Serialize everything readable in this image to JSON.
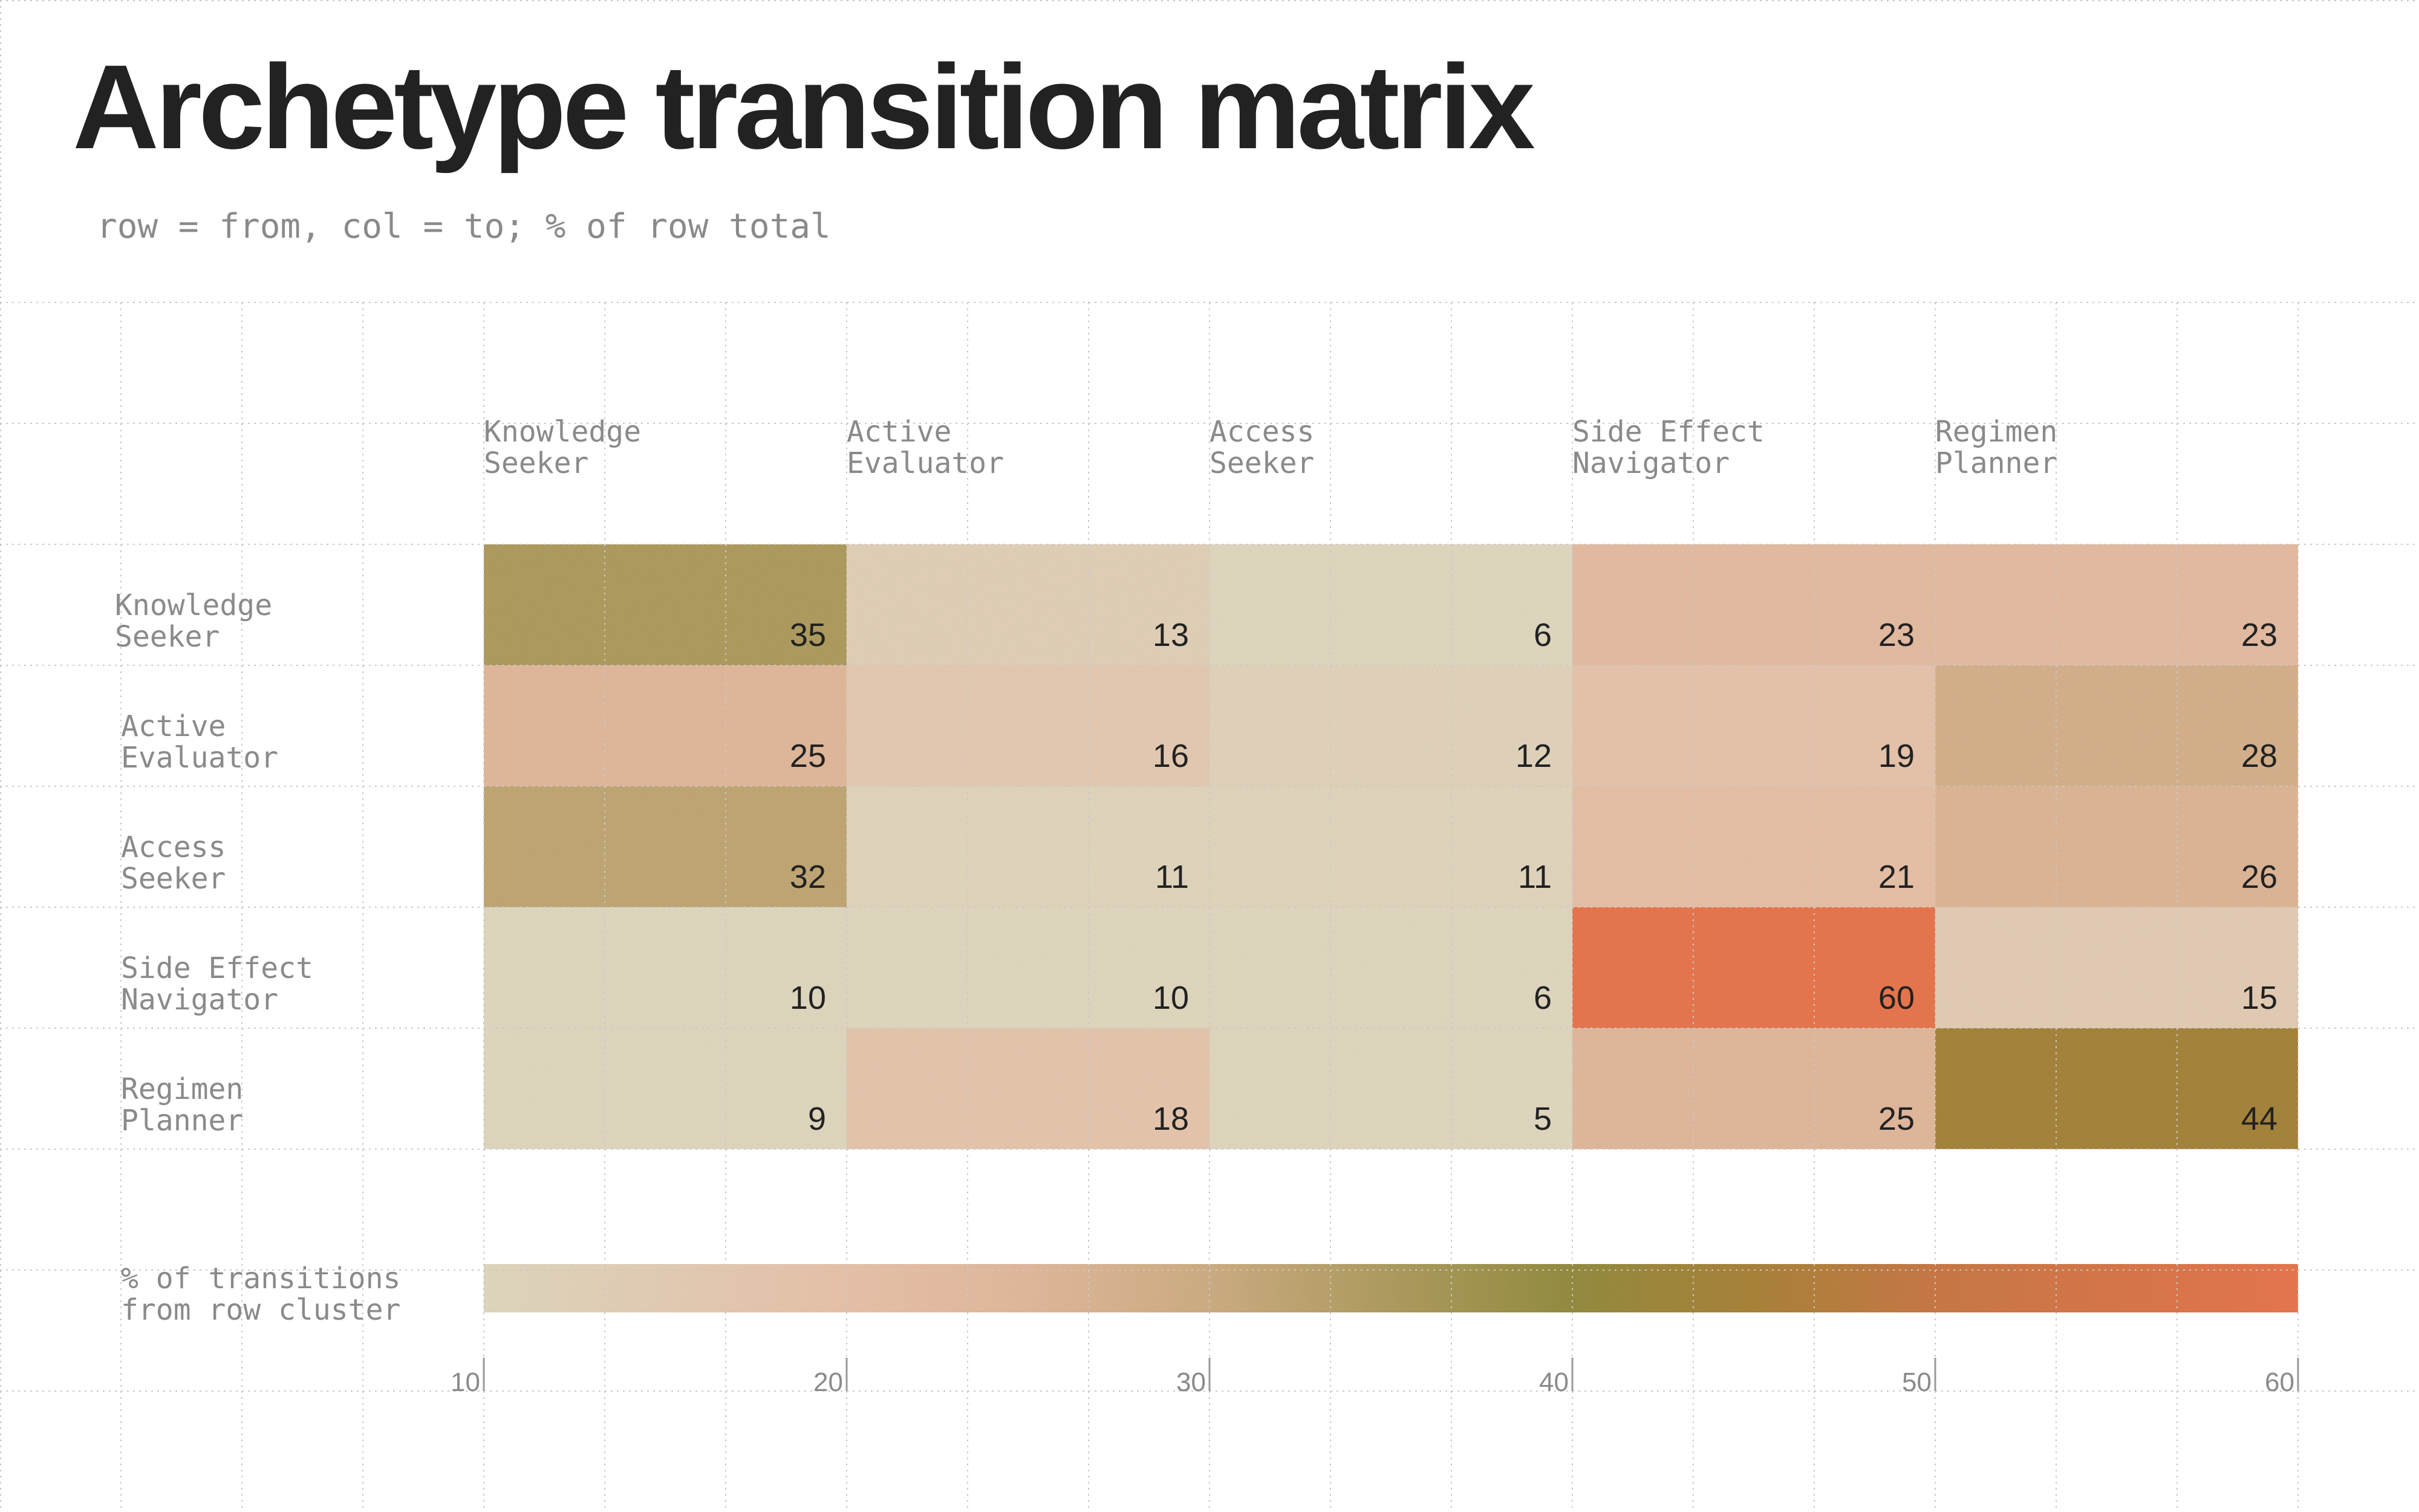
{
  "title": "Archetype transition matrix",
  "subtitle": "row = from, col = to; % of row total",
  "chart_data": {
    "type": "heatmap",
    "title": "Archetype transition matrix",
    "subtitle": "row = from, col = to; % of row total",
    "row_labels": [
      [
        "Knowledge",
        "Seeker"
      ],
      [
        "Active",
        "Evaluator"
      ],
      [
        "Access",
        "Seeker"
      ],
      [
        "Side Effect",
        "Navigator"
      ],
      [
        "Regimen",
        "Planner"
      ]
    ],
    "column_labels": [
      [
        "Knowledge",
        "Seeker"
      ],
      [
        "Active",
        "Evaluator"
      ],
      [
        "Access",
        "Seeker"
      ],
      [
        "Side Effect",
        "Navigator"
      ],
      [
        "Regimen",
        "Planner"
      ]
    ],
    "values": [
      [
        35,
        13,
        6,
        23,
        23
      ],
      [
        25,
        16,
        12,
        19,
        28
      ],
      [
        32,
        11,
        11,
        21,
        26
      ],
      [
        10,
        10,
        6,
        60,
        15
      ],
      [
        9,
        18,
        5,
        25,
        44
      ]
    ],
    "colorbar": {
      "label": [
        "% of transitions",
        "from row cluster"
      ],
      "range": [
        10,
        60
      ],
      "ticks": [
        10,
        20,
        30,
        40,
        50,
        60
      ],
      "stops": [
        {
          "value": 10,
          "color": "#e8dfc6"
        },
        {
          "value": 20,
          "color": "#f0c9b0"
        },
        {
          "value": 25,
          "color": "#e9bfa2"
        },
        {
          "value": 30,
          "color": "#d5b488"
        },
        {
          "value": 35,
          "color": "#b5a264"
        },
        {
          "value": 40,
          "color": "#9a9244"
        },
        {
          "value": 45,
          "color": "#b0883e"
        },
        {
          "value": 50,
          "color": "#d07e4a"
        },
        {
          "value": 60,
          "color": "#ef7b52"
        }
      ]
    }
  },
  "colors": {
    "title": "#222222",
    "muted_text": "#8a8a8a",
    "cell_text": "#222222",
    "grid": "#c9c9c9"
  }
}
